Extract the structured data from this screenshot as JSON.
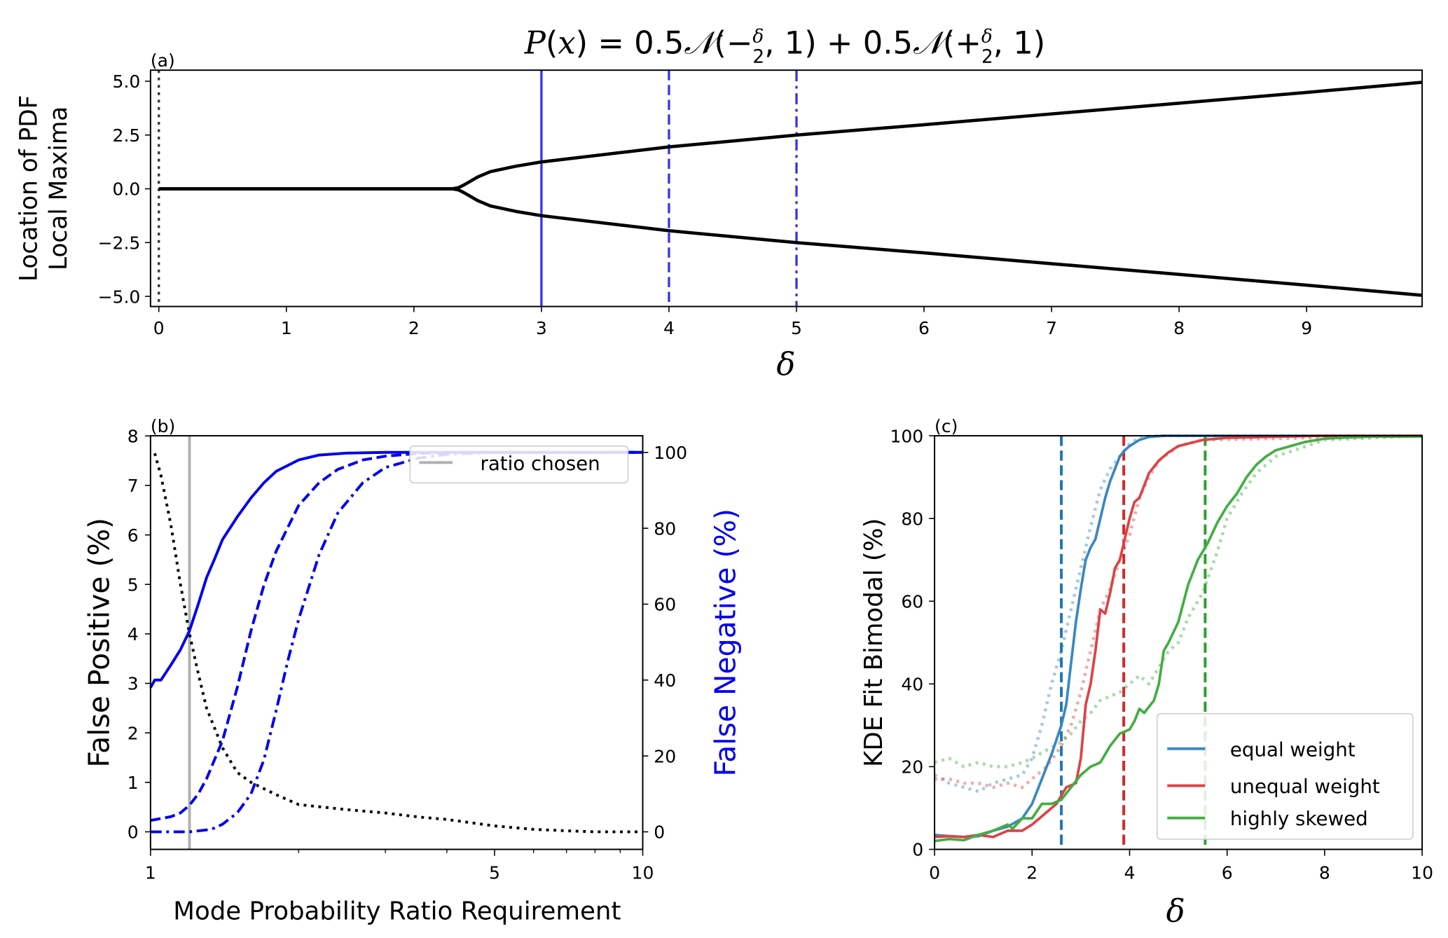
{
  "chart_data": [
    {
      "panel": "(a)",
      "type": "line",
      "title": "P(x) = 0.5𝒩(−δ/2, 1) + 0.5𝒩(+δ/2, 1)",
      "title_parts": {
        "lhs": "P(x) = 0.5",
        "n1": "𝒩",
        "mid1": "(−",
        "frac": "δ",
        "den": "2",
        "mid2": ", 1) + 0.5",
        "n2": "𝒩",
        "mid3": "(+",
        "end": ", 1)"
      },
      "xlabel": "δ",
      "ylabel_lines": [
        "Location of PDF",
        "Local Maxima"
      ],
      "xlim": [
        -0.06,
        9.9
      ],
      "ylim": [
        -5.5,
        5.5
      ],
      "xticks": [
        0,
        1,
        2,
        3,
        4,
        5,
        6,
        7,
        8,
        9
      ],
      "yticks": [
        5.0,
        2.5,
        0.0,
        -2.5,
        -5.0
      ],
      "ytick_labels": [
        "5.0",
        "2.5",
        "0.0",
        "−2.5",
        "−5.0"
      ],
      "series": [
        {
          "name": "upper maximum",
          "color": "#000000",
          "style": "solid",
          "x": [
            0,
            1,
            2,
            2.3,
            2.35,
            2.4,
            2.5,
            2.6,
            2.8,
            3,
            4,
            5,
            6,
            7,
            8,
            9,
            9.9
          ],
          "y": [
            0,
            0,
            0,
            0,
            0.05,
            0.2,
            0.55,
            0.8,
            1.05,
            1.25,
            1.95,
            2.5,
            2.98,
            3.48,
            3.98,
            4.48,
            4.95
          ]
        },
        {
          "name": "lower maximum",
          "color": "#000000",
          "style": "solid",
          "x": [
            0,
            1,
            2,
            2.3,
            2.35,
            2.4,
            2.5,
            2.6,
            2.8,
            3,
            4,
            5,
            6,
            7,
            8,
            9,
            9.9
          ],
          "y": [
            0,
            0,
            0,
            0,
            -0.05,
            -0.2,
            -0.55,
            -0.8,
            -1.05,
            -1.25,
            -1.95,
            -2.5,
            -2.98,
            -3.48,
            -3.98,
            -4.48,
            -4.95
          ]
        }
      ],
      "vlines": [
        {
          "x": 0,
          "color": "#333333",
          "style": "dotted"
        },
        {
          "x": 3,
          "color": "#3333ee",
          "style": "solid"
        },
        {
          "x": 4,
          "color": "#3333ee",
          "style": "dashed"
        },
        {
          "x": 5,
          "color": "#3333ee",
          "style": "dashdot"
        }
      ]
    },
    {
      "panel": "(b)",
      "type": "line",
      "xlabel": "Mode Probability Ratio Requirement",
      "ylabel": "False Positive (%)",
      "ylabel_right": "False Negative (%)",
      "ylabel_right_color": "#0000ee",
      "xscale": "log",
      "xlim": [
        1,
        10
      ],
      "ylim": [
        -0.45,
        8
      ],
      "ylim_right": [
        -5.6,
        104.5
      ],
      "xticks": [
        1,
        5,
        10
      ],
      "xtick_labels": [
        "1",
        "5",
        "10"
      ],
      "xminor_ticks": [
        2,
        3,
        4,
        6,
        7,
        8,
        9
      ],
      "yticks": [
        0,
        1,
        2,
        3,
        4,
        5,
        6,
        7,
        8
      ],
      "yticks_right": [
        0,
        20,
        40,
        60,
        80,
        100
      ],
      "legend": {
        "position": "upper-right",
        "entries": [
          {
            "label": "ratio chosen",
            "color": "#b0b0b0"
          }
        ]
      },
      "ratio_chosen": 1.2,
      "series": [
        {
          "name": "false positive",
          "axis": "left",
          "color": "#000000",
          "style": "dotted",
          "x": [
            1.02,
            1.05,
            1.1,
            1.15,
            1.2,
            1.25,
            1.3,
            1.4,
            1.5,
            1.6,
            1.8,
            2.0,
            2.5,
            3.0,
            3.5,
            4.0,
            5.0,
            6.0,
            7.0,
            8.0,
            10.0
          ],
          "y": [
            7.65,
            7.2,
            6.2,
            5.0,
            4.0,
            3.2,
            2.5,
            1.7,
            1.2,
            1.0,
            0.75,
            0.55,
            0.45,
            0.38,
            0.3,
            0.25,
            0.12,
            0.05,
            0.02,
            0.0,
            0.0
          ]
        },
        {
          "name": "false negative δ=3",
          "axis": "right",
          "color": "#0000ee",
          "style": "solid",
          "x": [
            1.0,
            1.02,
            1.05,
            1.1,
            1.15,
            1.2,
            1.25,
            1.3,
            1.35,
            1.4,
            1.5,
            1.6,
            1.7,
            1.8,
            2.0,
            2.2,
            2.5,
            3.0,
            4.0,
            10.0
          ],
          "y": [
            38,
            40,
            40,
            44,
            48,
            53,
            60,
            67,
            72,
            77,
            83,
            88,
            92,
            95,
            98,
            99.3,
            99.8,
            100,
            100,
            100
          ]
        },
        {
          "name": "false negative δ=4",
          "axis": "right",
          "color": "#0000ee",
          "style": "dashed",
          "x": [
            1.0,
            1.05,
            1.1,
            1.15,
            1.2,
            1.25,
            1.3,
            1.4,
            1.5,
            1.6,
            1.7,
            1.8,
            2.0,
            2.2,
            2.4,
            2.7,
            3.0,
            3.5,
            4.0,
            10.0
          ],
          "y": [
            3,
            3.5,
            4,
            5,
            7,
            10,
            14,
            24,
            38,
            53,
            65,
            74,
            86,
            92,
            95.5,
            98,
            99,
            99.7,
            100,
            100
          ]
        },
        {
          "name": "false negative δ=5",
          "axis": "right",
          "color": "#0000ee",
          "style": "dashdot",
          "x": [
            1.0,
            1.1,
            1.2,
            1.3,
            1.35,
            1.4,
            1.5,
            1.6,
            1.7,
            1.8,
            1.9,
            2.0,
            2.2,
            2.4,
            2.7,
            3.0,
            3.5,
            4.0,
            5.0,
            10.0
          ],
          "y": [
            0,
            0,
            0,
            0.5,
            1,
            2,
            5,
            10,
            19,
            32,
            45,
            56,
            73,
            84,
            92,
            96,
            98.5,
            99.5,
            100,
            100
          ]
        }
      ]
    },
    {
      "panel": "(c)",
      "type": "line",
      "xlabel": "δ",
      "ylabel": "KDE Fit Bimodal (%)",
      "xlim": [
        0,
        10
      ],
      "ylim": [
        0,
        101
      ],
      "xticks": [
        0,
        2,
        4,
        6,
        8,
        10
      ],
      "yticks": [
        0,
        20,
        40,
        60,
        80,
        100
      ],
      "legend": {
        "position": "lower-right",
        "entries": [
          {
            "label": "equal weight",
            "color": "#3a87c4"
          },
          {
            "label": "unequal weight",
            "color": "#de4245"
          },
          {
            "label": "highly skewed",
            "color": "#44ad44"
          }
        ]
      },
      "vlines": [
        {
          "x": 2.6,
          "color": "#1f77b4",
          "style": "dashed"
        },
        {
          "x": 3.88,
          "color": "#d62728",
          "style": "dashed"
        },
        {
          "x": 5.55,
          "color": "#2ca02c",
          "style": "dashed"
        }
      ],
      "series": [
        {
          "name": "equal weight",
          "color": "#3a87c4",
          "style": "solid",
          "x": [
            0,
            0.3,
            0.6,
            0.9,
            1.2,
            1.5,
            1.8,
            2.0,
            2.2,
            2.4,
            2.6,
            2.7,
            2.8,
            2.9,
            3.0,
            3.1,
            3.2,
            3.3,
            3.4,
            3.5,
            3.6,
            3.7,
            3.8,
            3.9,
            4.0,
            4.2,
            4.4,
            4.7,
            5.0,
            6.0,
            8.0,
            10.0
          ],
          "y": [
            3.5,
            3.2,
            3.0,
            3.2,
            4.5,
            5.5,
            7.5,
            11,
            17,
            23,
            30,
            35,
            45,
            55,
            63,
            70,
            73,
            75,
            80,
            85,
            89,
            92,
            95,
            96.5,
            97.5,
            99,
            99.7,
            100,
            100,
            100,
            100,
            100
          ]
        },
        {
          "name": "unequal weight",
          "color": "#de4245",
          "style": "solid",
          "x": [
            0,
            0.3,
            0.6,
            0.9,
            1.2,
            1.5,
            1.8,
            2.0,
            2.2,
            2.5,
            2.7,
            2.9,
            3.0,
            3.1,
            3.2,
            3.3,
            3.4,
            3.5,
            3.6,
            3.7,
            3.8,
            3.9,
            4.0,
            4.1,
            4.2,
            4.4,
            4.6,
            4.8,
            5.0,
            5.5,
            6.0,
            8.0,
            10.0
          ],
          "y": [
            3,
            3.2,
            3.0,
            3.5,
            3.0,
            4.5,
            4.5,
            6,
            8,
            11,
            15,
            16,
            22,
            35,
            40,
            48,
            58,
            57,
            62,
            68,
            70,
            75,
            80,
            84,
            85,
            91,
            94,
            96,
            97.5,
            99,
            99.5,
            100,
            100
          ]
        },
        {
          "name": "highly skewed",
          "color": "#44ad44",
          "style": "solid",
          "x": [
            0,
            0.3,
            0.6,
            0.9,
            1.2,
            1.5,
            1.6,
            1.8,
            2.0,
            2.2,
            2.4,
            2.6,
            2.8,
            3.0,
            3.2,
            3.4,
            3.6,
            3.8,
            4.0,
            4.1,
            4.2,
            4.3,
            4.5,
            4.6,
            4.7,
            4.8,
            5.0,
            5.2,
            5.4,
            5.6,
            5.8,
            6.0,
            6.2,
            6.4,
            6.6,
            6.8,
            7.0,
            7.3,
            7.6,
            8.0,
            8.5,
            9.0,
            10.0
          ],
          "y": [
            2,
            2.5,
            2.2,
            3.5,
            4.5,
            6,
            5,
            7.5,
            7.5,
            11,
            11,
            12,
            15,
            18,
            20,
            21,
            25,
            28,
            29,
            31,
            34,
            33,
            36,
            40,
            48,
            50,
            55,
            64,
            70,
            74,
            79,
            83,
            86,
            90,
            93,
            95,
            96.5,
            97.5,
            98.5,
            99.3,
            99.6,
            99.8,
            99.8
          ]
        },
        {
          "name": "equal weight (dotted)",
          "color": "#3a87c4",
          "style": "dotted",
          "alpha": 0.45,
          "x": [
            0,
            0.3,
            0.6,
            0.9,
            1.2,
            1.5,
            1.8,
            2.0,
            2.2,
            2.4,
            2.6,
            2.8,
            3.0,
            3.2,
            3.4,
            3.6,
            3.8,
            4.0,
            4.2,
            4.5,
            5.0,
            10.0
          ],
          "y": [
            18,
            16,
            15,
            14,
            16,
            17,
            18,
            22,
            30,
            40,
            48,
            58,
            68,
            78,
            87,
            92,
            95,
            98,
            99.5,
            100,
            100,
            100
          ]
        },
        {
          "name": "unequal weight (dotted)",
          "color": "#de4245",
          "style": "dotted",
          "alpha": 0.45,
          "x": [
            0,
            0.3,
            0.6,
            0.9,
            1.2,
            1.5,
            1.8,
            2.0,
            2.3,
            2.6,
            2.8,
            3.0,
            3.2,
            3.4,
            3.6,
            3.8,
            4.0,
            4.2,
            4.4,
            4.6,
            5.0,
            5.5,
            10.0
          ],
          "y": [
            17,
            17,
            16,
            16,
            15,
            16,
            15,
            17,
            20,
            25,
            30,
            38,
            48,
            58,
            63,
            70,
            76,
            85,
            90,
            94,
            97.5,
            99,
            100
          ]
        },
        {
          "name": "highly skewed (dotted)",
          "color": "#44ad44",
          "style": "dotted",
          "alpha": 0.45,
          "x": [
            0,
            0.3,
            0.6,
            0.9,
            1.2,
            1.5,
            1.8,
            2.0,
            2.3,
            2.6,
            2.8,
            3.0,
            3.2,
            3.4,
            3.6,
            3.8,
            4.0,
            4.2,
            4.4,
            4.6,
            4.8,
            5.0,
            5.2,
            5.5,
            5.8,
            6.0,
            6.3,
            6.6,
            7.0,
            8.0,
            10.0
          ],
          "y": [
            21,
            22,
            20,
            21,
            20,
            20,
            21,
            22,
            24,
            26,
            28,
            31,
            33,
            36,
            37,
            38,
            40,
            42,
            40,
            44,
            48,
            50,
            56,
            62,
            72,
            80,
            86,
            91,
            95,
            99,
            100
          ]
        }
      ]
    }
  ]
}
